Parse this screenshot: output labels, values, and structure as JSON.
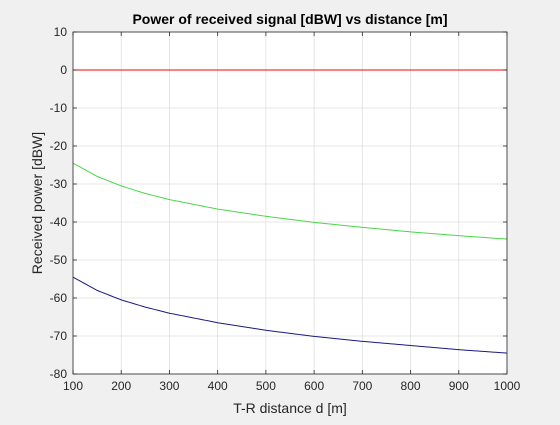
{
  "chart_data": {
    "type": "line",
    "title": "Power of received signal [dBW] vs distance [m]",
    "xlabel": "T-R distance d [m]",
    "ylabel": "Received power [dBW]",
    "xlim": [
      100,
      1000
    ],
    "ylim": [
      -80,
      10
    ],
    "xticks": [
      100,
      200,
      300,
      400,
      500,
      600,
      700,
      800,
      900,
      1000
    ],
    "yticks": [
      10,
      0,
      -10,
      -20,
      -30,
      -40,
      -50,
      -60,
      -70,
      -80
    ],
    "grid": true,
    "legend": "none",
    "x": [
      100,
      150,
      200,
      250,
      300,
      400,
      500,
      600,
      700,
      800,
      900,
      1000
    ],
    "series": [
      {
        "color": "#ff0000",
        "values": [
          0,
          0,
          0,
          0,
          0,
          0,
          0,
          0,
          0,
          0,
          0,
          0
        ]
      },
      {
        "color": "#4cd64c",
        "values": [
          -24.5,
          -28.0,
          -30.5,
          -32.5,
          -34.1,
          -36.6,
          -38.5,
          -40.1,
          -41.4,
          -42.6,
          -43.6,
          -44.5
        ]
      },
      {
        "color": "#1a1a80",
        "values": [
          -54.5,
          -58.0,
          -60.5,
          -62.4,
          -64.0,
          -66.5,
          -68.5,
          -70.1,
          -71.4,
          -72.5,
          -73.6,
          -74.5
        ]
      }
    ]
  }
}
